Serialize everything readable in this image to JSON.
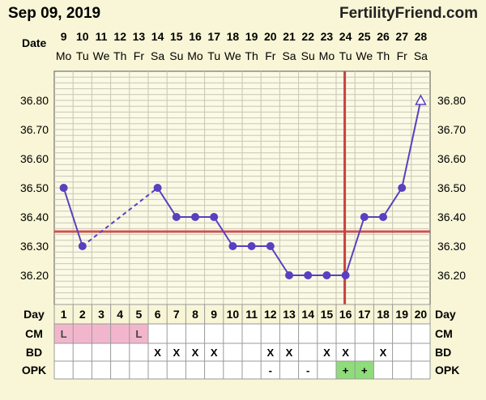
{
  "header": {
    "date_label": "Sep 09, 2019",
    "site": "FertilityFriend.com"
  },
  "row_labels": {
    "date": "Date",
    "day": "Day",
    "cm": "CM",
    "bd": "BD",
    "opk": "OPK"
  },
  "columns": [
    {
      "date": "9",
      "dow": "Mo",
      "day": "1",
      "cm": "L",
      "bd": "",
      "opk": ""
    },
    {
      "date": "10",
      "dow": "Tu",
      "day": "2",
      "cm": "",
      "bd": "",
      "opk": ""
    },
    {
      "date": "11",
      "dow": "We",
      "day": "3",
      "cm": "",
      "bd": "",
      "opk": ""
    },
    {
      "date": "12",
      "dow": "Th",
      "day": "4",
      "cm": "",
      "bd": "",
      "opk": ""
    },
    {
      "date": "13",
      "dow": "Fr",
      "day": "5",
      "cm": "L",
      "bd": "",
      "opk": ""
    },
    {
      "date": "14",
      "dow": "Sa",
      "day": "6",
      "cm": "",
      "bd": "X",
      "opk": ""
    },
    {
      "date": "15",
      "dow": "Su",
      "day": "7",
      "cm": "",
      "bd": "X",
      "opk": ""
    },
    {
      "date": "16",
      "dow": "Mo",
      "day": "8",
      "cm": "",
      "bd": "X",
      "opk": ""
    },
    {
      "date": "17",
      "dow": "Tu",
      "day": "9",
      "cm": "",
      "bd": "X",
      "opk": ""
    },
    {
      "date": "18",
      "dow": "We",
      "day": "10",
      "cm": "",
      "bd": "",
      "opk": ""
    },
    {
      "date": "19",
      "dow": "Th",
      "day": "11",
      "cm": "",
      "bd": "",
      "opk": ""
    },
    {
      "date": "20",
      "dow": "Fr",
      "day": "12",
      "cm": "",
      "bd": "X",
      "opk": "-"
    },
    {
      "date": "21",
      "dow": "Sa",
      "day": "13",
      "cm": "",
      "bd": "X",
      "opk": ""
    },
    {
      "date": "22",
      "dow": "Su",
      "day": "14",
      "cm": "",
      "bd": "",
      "opk": "-"
    },
    {
      "date": "23",
      "dow": "Mo",
      "day": "15",
      "cm": "",
      "bd": "X",
      "opk": ""
    },
    {
      "date": "24",
      "dow": "Tu",
      "day": "16",
      "cm": "",
      "bd": "X",
      "opk": "+"
    },
    {
      "date": "25",
      "dow": "We",
      "day": "17",
      "cm": "",
      "bd": "",
      "opk": "+"
    },
    {
      "date": "26",
      "dow": "Th",
      "day": "18",
      "cm": "",
      "bd": "X",
      "opk": ""
    },
    {
      "date": "27",
      "dow": "Fr",
      "day": "19",
      "cm": "",
      "bd": "",
      "opk": ""
    },
    {
      "date": "28",
      "dow": "Sa",
      "day": "20",
      "cm": "",
      "bd": "",
      "opk": ""
    }
  ],
  "colors": {
    "background": "#f8f6d6",
    "plot_background": "#fbfae6",
    "grid": "#c9c6b4",
    "series": "#5a3fc0",
    "coverline": "#d05050",
    "ovulation_line": "#c94040",
    "menses_fill": "#f2b6cc",
    "opk_positive_fill": "#8edc7a",
    "table_fill": "#ffffff",
    "label_text": "#000000",
    "site_text": "#222222"
  },
  "chart_data": {
    "type": "line",
    "title": "",
    "xlabel": "",
    "ylabel": "",
    "x": [
      "9",
      "10",
      "11",
      "12",
      "13",
      "14",
      "15",
      "16",
      "17",
      "18",
      "19",
      "20",
      "21",
      "22",
      "23",
      "24",
      "25",
      "26",
      "27",
      "28"
    ],
    "ylim": [
      36.1,
      36.9
    ],
    "yticks": [
      "36.20",
      "36.30",
      "36.40",
      "36.50",
      "36.60",
      "36.70",
      "36.80"
    ],
    "yticks_values": [
      36.2,
      36.3,
      36.4,
      36.5,
      36.6,
      36.7,
      36.8
    ],
    "series": [
      {
        "values": [
          36.5,
          36.3,
          null,
          null,
          null,
          36.5,
          36.4,
          36.4,
          36.4,
          36.3,
          36.3,
          36.3,
          36.2,
          36.2,
          36.2,
          36.2,
          36.4,
          36.4,
          36.5,
          36.8
        ]
      }
    ],
    "dashed_gaps": [
      [
        1,
        5
      ]
    ],
    "open_marker_indices": [
      19
    ],
    "coverline_value": 36.35,
    "ovulation_index": 15,
    "grid": true,
    "legend": "none"
  }
}
